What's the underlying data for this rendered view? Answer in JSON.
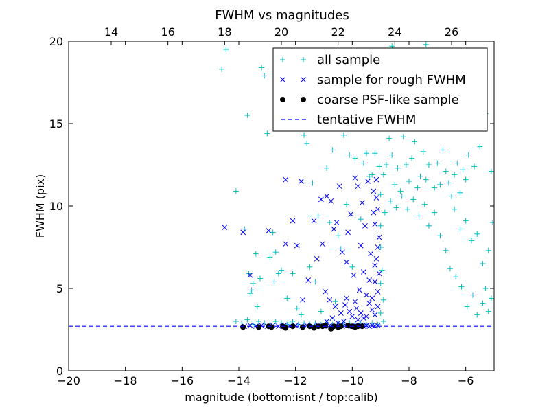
{
  "chart_data": {
    "type": "scatter",
    "title": "FWHM vs magnitudes",
    "xlabel": "magnitude (bottom:isnt / top:calib)",
    "ylabel": "FWHM (pix)",
    "xlim": [
      -20,
      -5
    ],
    "ylim": [
      0,
      20
    ],
    "top_xlim": [
      12.5,
      27.5
    ],
    "x_ticks": [
      -20,
      -18,
      -16,
      -14,
      -12,
      -10,
      -8,
      -6
    ],
    "x_tick_labels": [
      "−20",
      "−18",
      "−16",
      "−14",
      "−12",
      "−10",
      "−8",
      "−6"
    ],
    "y_ticks": [
      0,
      5,
      10,
      15,
      20
    ],
    "y_tick_labels": [
      "0",
      "5",
      "10",
      "15",
      "20"
    ],
    "top_ticks": [
      14,
      16,
      18,
      20,
      22,
      24,
      26
    ],
    "top_tick_labels": [
      "14",
      "16",
      "18",
      "20",
      "22",
      "24",
      "26"
    ],
    "legend_position": "top-right",
    "colors": {
      "all": "#00bfbf",
      "rough": "#0000ff",
      "coarse": "#000000",
      "tentative": "#0000ff"
    },
    "series": [
      {
        "name": "all sample",
        "marker": "plus",
        "points": [
          [
            -14.6,
            18.3
          ],
          [
            -14.45,
            19.5
          ],
          [
            -14.1,
            10.9
          ],
          [
            -13.8,
            8.6
          ],
          [
            -13.7,
            15.5
          ],
          [
            -13.65,
            5.9
          ],
          [
            -13.6,
            4.7
          ],
          [
            -13.55,
            4.9
          ],
          [
            -13.5,
            5.3
          ],
          [
            -13.4,
            7.1
          ],
          [
            -13.35,
            3.9
          ],
          [
            -13.25,
            5.6
          ],
          [
            -13.2,
            18.4
          ],
          [
            -13.1,
            17.9
          ],
          [
            -13.0,
            14.4
          ],
          [
            -12.9,
            6.9
          ],
          [
            -12.8,
            8.4
          ],
          [
            -12.75,
            5.4
          ],
          [
            -12.7,
            7.2
          ],
          [
            -12.6,
            5.9
          ],
          [
            -12.5,
            6.1
          ],
          [
            -12.3,
            4.4
          ],
          [
            -12.2,
            2.9
          ],
          [
            -12.1,
            5.9
          ],
          [
            -11.95,
            3.8
          ],
          [
            -11.8,
            3.4
          ],
          [
            -11.7,
            14.3
          ],
          [
            -11.6,
            13.8
          ],
          [
            -11.5,
            6.3
          ],
          [
            -11.4,
            11.4
          ],
          [
            -11.3,
            5.4
          ],
          [
            -11.2,
            9.4
          ],
          [
            -11.1,
            3.6
          ],
          [
            -10.9,
            12.3
          ],
          [
            -10.8,
            9.0
          ],
          [
            -10.7,
            13.4
          ],
          [
            -10.6,
            4.2
          ],
          [
            -10.5,
            8.2
          ],
          [
            -10.4,
            7.4
          ],
          [
            -10.3,
            14.3
          ],
          [
            -10.2,
            10.1
          ],
          [
            -10.1,
            13.1
          ],
          [
            -10.0,
            6.3
          ],
          [
            -9.9,
            12.9
          ],
          [
            -9.8,
            14.8
          ],
          [
            -9.7,
            9.2
          ],
          [
            -9.6,
            12.6
          ],
          [
            -9.5,
            13.2
          ],
          [
            -9.45,
            15.2
          ],
          [
            -9.4,
            11.8
          ],
          [
            -9.3,
            11.9
          ],
          [
            -9.2,
            13.2
          ],
          [
            -9.1,
            14.9
          ],
          [
            -9.05,
            12.4
          ],
          [
            -9.0,
            10.7
          ],
          [
            -8.9,
            11.9
          ],
          [
            -8.8,
            12.5
          ],
          [
            -8.7,
            14.1
          ],
          [
            -8.6,
            13.1
          ],
          [
            -8.5,
            11.3
          ],
          [
            -8.4,
            12.3
          ],
          [
            -8.3,
            10.9
          ],
          [
            -8.2,
            14.2
          ],
          [
            -8.1,
            12.5
          ],
          [
            -8.0,
            11.5
          ],
          [
            -7.9,
            12.9
          ],
          [
            -7.8,
            13.9
          ],
          [
            -7.7,
            11.1
          ],
          [
            -7.6,
            11.8
          ],
          [
            -7.5,
            13.3
          ],
          [
            -7.4,
            11.6
          ],
          [
            -7.3,
            12.5
          ],
          [
            -7.2,
            14.9
          ],
          [
            -7.1,
            11.1
          ],
          [
            -7.0,
            12.6
          ],
          [
            -6.9,
            11.3
          ],
          [
            -6.8,
            13.4
          ],
          [
            -6.7,
            12.1
          ],
          [
            -6.6,
            11.4
          ],
          [
            -6.5,
            10.6
          ],
          [
            -6.4,
            11.9
          ],
          [
            -6.3,
            12.6
          ],
          [
            -6.2,
            10.8
          ],
          [
            -6.1,
            12.2
          ],
          [
            -6.0,
            11.6
          ],
          [
            -5.9,
            13.1
          ],
          [
            -5.7,
            12.4
          ],
          [
            -5.5,
            13.6
          ],
          [
            -5.3,
            15.6
          ],
          [
            -5.1,
            12.1
          ],
          [
            -8.85,
            15.3
          ],
          [
            -8.55,
            17.2
          ],
          [
            -8.3,
            18.6
          ],
          [
            -8.05,
            16.8
          ],
          [
            -7.8,
            19.4
          ],
          [
            -7.55,
            17.8
          ],
          [
            -7.3,
            16.4
          ],
          [
            -7.0,
            15.8
          ],
          [
            -6.75,
            17.4
          ],
          [
            -6.5,
            16.1
          ],
          [
            -6.2,
            15.4
          ],
          [
            -5.8,
            16.6
          ],
          [
            -5.4,
            17.5
          ],
          [
            -8.6,
            19.7
          ],
          [
            -8.2,
            19.1
          ],
          [
            -7.4,
            19.8
          ],
          [
            -6.4,
            9.8
          ],
          [
            -6.2,
            8.6
          ],
          [
            -6.0,
            9.1
          ],
          [
            -5.8,
            7.9
          ],
          [
            -5.6,
            8.3
          ],
          [
            -5.4,
            6.5
          ],
          [
            -5.2,
            7.3
          ],
          [
            -5.05,
            9.0
          ],
          [
            -5.3,
            5.0
          ],
          [
            -5.1,
            4.4
          ],
          [
            -5.2,
            3.6
          ],
          [
            -5.4,
            4.1
          ],
          [
            -5.6,
            3.4
          ],
          [
            -5.75,
            4.6
          ],
          [
            -5.95,
            3.9
          ],
          [
            -6.15,
            5.1
          ],
          [
            -6.35,
            5.7
          ],
          [
            -6.55,
            6.2
          ],
          [
            -6.7,
            7.3
          ],
          [
            -6.9,
            8.2
          ],
          [
            -7.1,
            9.6
          ],
          [
            -7.3,
            8.8
          ],
          [
            -7.45,
            10.1
          ],
          [
            -7.65,
            9.4
          ],
          [
            -7.85,
            10.4
          ],
          [
            -8.05,
            9.8
          ],
          [
            -8.25,
            10.6
          ],
          [
            -8.45,
            9.9
          ],
          [
            -8.65,
            10.3
          ],
          [
            -8.85,
            9.6
          ],
          [
            -9.0,
            8.8
          ],
          [
            -9.0,
            7.5
          ],
          [
            -8.95,
            6.1
          ],
          [
            -9.0,
            5.3
          ],
          [
            -8.9,
            4.3
          ],
          [
            -9.0,
            3.5
          ],
          [
            -8.9,
            3.0
          ],
          [
            -14.1,
            3.0
          ],
          [
            -13.9,
            2.9
          ],
          [
            -13.7,
            3.1
          ],
          [
            -13.5,
            2.8
          ],
          [
            -13.3,
            3.0
          ],
          [
            -13.1,
            2.9
          ],
          [
            -12.9,
            2.8
          ],
          [
            -12.7,
            3.0
          ],
          [
            -12.5,
            2.9
          ],
          [
            -12.3,
            2.8
          ],
          [
            -12.1,
            3.0
          ],
          [
            -11.9,
            2.8
          ],
          [
            -11.7,
            2.9
          ],
          [
            -11.5,
            2.8
          ],
          [
            -11.3,
            2.9
          ],
          [
            -11.1,
            2.8
          ],
          [
            -10.9,
            2.9
          ],
          [
            -10.7,
            2.8
          ],
          [
            -10.5,
            2.9
          ],
          [
            -10.3,
            2.8
          ],
          [
            -10.1,
            2.9
          ],
          [
            -9.9,
            2.8
          ],
          [
            -9.7,
            2.9
          ],
          [
            -9.5,
            2.8
          ],
          [
            -9.3,
            2.9
          ],
          [
            -9.1,
            2.8
          ]
        ]
      },
      {
        "name": "sample for rough FWHM",
        "marker": "x",
        "points": [
          [
            -14.5,
            8.7
          ],
          [
            -13.85,
            8.4
          ],
          [
            -13.6,
            5.8
          ],
          [
            -12.95,
            8.5
          ],
          [
            -12.35,
            11.6
          ],
          [
            -12.35,
            7.7
          ],
          [
            -12.1,
            9.1
          ],
          [
            -11.95,
            7.6
          ],
          [
            -11.8,
            11.5
          ],
          [
            -11.75,
            4.3
          ],
          [
            -11.55,
            5.5
          ],
          [
            -11.35,
            9.1
          ],
          [
            -11.25,
            6.8
          ],
          [
            -11.1,
            10.4
          ],
          [
            -11.05,
            7.7
          ],
          [
            -10.95,
            4.8
          ],
          [
            -10.9,
            10.6
          ],
          [
            -10.75,
            10.3
          ],
          [
            -10.65,
            8.6
          ],
          [
            -10.55,
            9.0
          ],
          [
            -10.45,
            11.2
          ],
          [
            -10.35,
            7.2
          ],
          [
            -10.25,
            4.0
          ],
          [
            -10.2,
            6.6
          ],
          [
            -10.15,
            8.4
          ],
          [
            -10.05,
            9.5
          ],
          [
            -9.95,
            5.8
          ],
          [
            -9.9,
            11.7
          ],
          [
            -9.85,
            3.8
          ],
          [
            -9.8,
            11.2
          ],
          [
            -9.75,
            4.9
          ],
          [
            -9.7,
            7.6
          ],
          [
            -9.65,
            10.2
          ],
          [
            -9.6,
            6.0
          ],
          [
            -9.55,
            8.8
          ],
          [
            -9.5,
            3.3
          ],
          [
            -9.45,
            11.5
          ],
          [
            -9.4,
            5.5
          ],
          [
            -9.35,
            7.1
          ],
          [
            -9.3,
            4.4
          ],
          [
            -9.25,
            9.6
          ],
          [
            -9.2,
            6.4
          ],
          [
            -9.15,
            11.6
          ],
          [
            -9.1,
            3.9
          ],
          [
            -9.05,
            8.1
          ],
          [
            -9.1,
            9.8
          ],
          [
            -9.15,
            10.5
          ],
          [
            -9.2,
            8.9
          ],
          [
            -9.25,
            10.9
          ],
          [
            -9.1,
            7.5
          ],
          [
            -9.15,
            6.8
          ],
          [
            -9.2,
            5.4
          ],
          [
            -9.05,
            5.9
          ],
          [
            -9.1,
            4.8
          ],
          [
            -9.2,
            3.4
          ],
          [
            -9.3,
            3.7
          ],
          [
            -9.4,
            4.1
          ],
          [
            -9.5,
            4.6
          ],
          [
            -9.6,
            3.2
          ],
          [
            -9.7,
            3.5
          ],
          [
            -9.8,
            3.1
          ],
          [
            -9.9,
            4.2
          ],
          [
            -10.0,
            3.3
          ],
          [
            -10.1,
            3.6
          ],
          [
            -10.2,
            4.4
          ],
          [
            -10.3,
            3.0
          ],
          [
            -10.4,
            3.5
          ],
          [
            -10.5,
            2.9
          ],
          [
            -10.6,
            3.9
          ],
          [
            -10.7,
            3.2
          ],
          [
            -10.8,
            4.3
          ],
          [
            -10.9,
            3.0
          ],
          [
            -9.1,
            2.75
          ],
          [
            -9.2,
            2.7
          ],
          [
            -9.3,
            2.75
          ],
          [
            -9.4,
            2.7
          ],
          [
            -9.5,
            2.75
          ],
          [
            -9.6,
            2.7
          ],
          [
            -9.7,
            2.75
          ],
          [
            -9.8,
            2.7
          ],
          [
            -9.9,
            2.75
          ],
          [
            -10.0,
            2.7
          ],
          [
            -10.2,
            2.7
          ],
          [
            -10.4,
            2.75
          ],
          [
            -10.6,
            2.7
          ],
          [
            -10.8,
            2.75
          ],
          [
            -11.0,
            2.7
          ],
          [
            -11.2,
            2.75
          ],
          [
            -11.4,
            2.7
          ],
          [
            -11.6,
            2.75
          ],
          [
            -11.8,
            2.7
          ],
          [
            -12.0,
            2.75
          ],
          [
            -12.2,
            2.7
          ],
          [
            -12.4,
            2.75
          ],
          [
            -12.6,
            2.7
          ],
          [
            -12.8,
            2.75
          ],
          [
            -13.0,
            2.7
          ],
          [
            -13.2,
            2.75
          ],
          [
            -13.4,
            2.7
          ],
          [
            -13.6,
            2.75
          ],
          [
            -13.8,
            2.7
          ]
        ]
      },
      {
        "name": "coarse PSF-like sample",
        "marker": "circle",
        "points": [
          [
            -13.85,
            2.65
          ],
          [
            -13.3,
            2.65
          ],
          [
            -12.95,
            2.7
          ],
          [
            -12.85,
            2.65
          ],
          [
            -12.45,
            2.7
          ],
          [
            -12.35,
            2.6
          ],
          [
            -12.1,
            2.7
          ],
          [
            -11.75,
            2.65
          ],
          [
            -11.5,
            2.7
          ],
          [
            -11.35,
            2.6
          ],
          [
            -11.2,
            2.7
          ],
          [
            -11.05,
            2.7
          ],
          [
            -10.95,
            2.75
          ],
          [
            -10.75,
            2.55
          ],
          [
            -10.65,
            2.7
          ],
          [
            -10.5,
            2.65
          ],
          [
            -10.4,
            2.7
          ],
          [
            -10.15,
            2.75
          ],
          [
            -10.0,
            2.7
          ],
          [
            -9.9,
            2.65
          ],
          [
            -9.8,
            2.7
          ],
          [
            -9.65,
            2.7
          ]
        ]
      },
      {
        "name": "tentative FWHM",
        "marker": "dashed-line",
        "y": 2.7
      }
    ]
  }
}
